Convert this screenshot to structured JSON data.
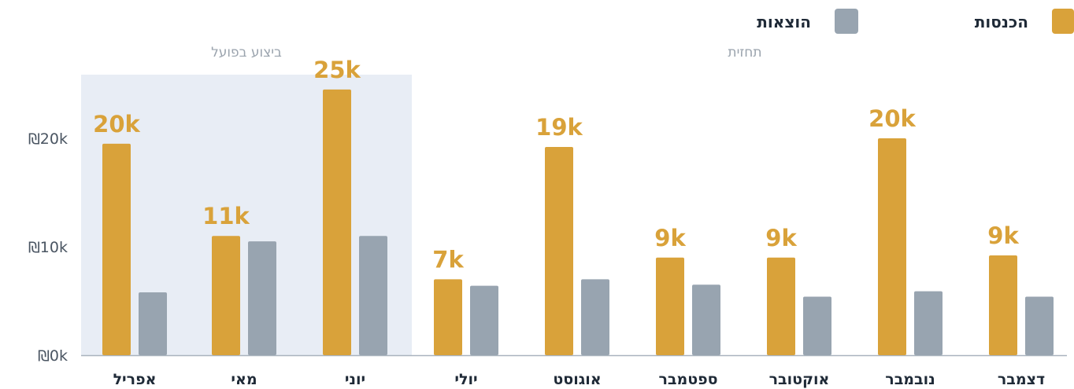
{
  "chart_data": {
    "type": "bar",
    "direction": "rtl",
    "categories": [
      "אפריל",
      "מאי",
      "יוני",
      "יולי",
      "אוגוסט",
      "ספטמבר",
      "אוקטובר",
      "נובמבר",
      "דצמבר"
    ],
    "series": [
      {
        "name": "הכנסות",
        "color": "#D9A23A",
        "values": [
          19.5,
          11.0,
          24.5,
          7.0,
          19.2,
          9.0,
          9.0,
          20.0,
          9.2
        ],
        "data_labels": [
          "20k",
          "11k",
          "25k",
          "7k",
          "19k",
          "9k",
          "9k",
          "20k",
          "9k"
        ]
      },
      {
        "name": "הוצאות",
        "color": "#98A4B0",
        "values": [
          5.8,
          10.5,
          11.0,
          6.4,
          7.0,
          6.5,
          5.4,
          5.9,
          5.4
        ]
      }
    ],
    "y_ticks": [
      "₪0k",
      "₪10k",
      "₪20k"
    ],
    "y_tick_values": [
      0,
      10,
      20
    ],
    "ylim": [
      0,
      26
    ],
    "regions": [
      {
        "label": "ביצוע בפועל",
        "categories": [
          "אפריל",
          "מאי",
          "יוני"
        ],
        "color": "#E8EDF5"
      },
      {
        "label": "תחזית",
        "categories": [
          "יולי",
          "אוגוסט",
          "ספטמבר",
          "אוקטובר",
          "נובמבר",
          "דצמבר"
        ]
      }
    ],
    "legend_position": "top-right",
    "title": "",
    "xlabel": "",
    "ylabel": ""
  }
}
